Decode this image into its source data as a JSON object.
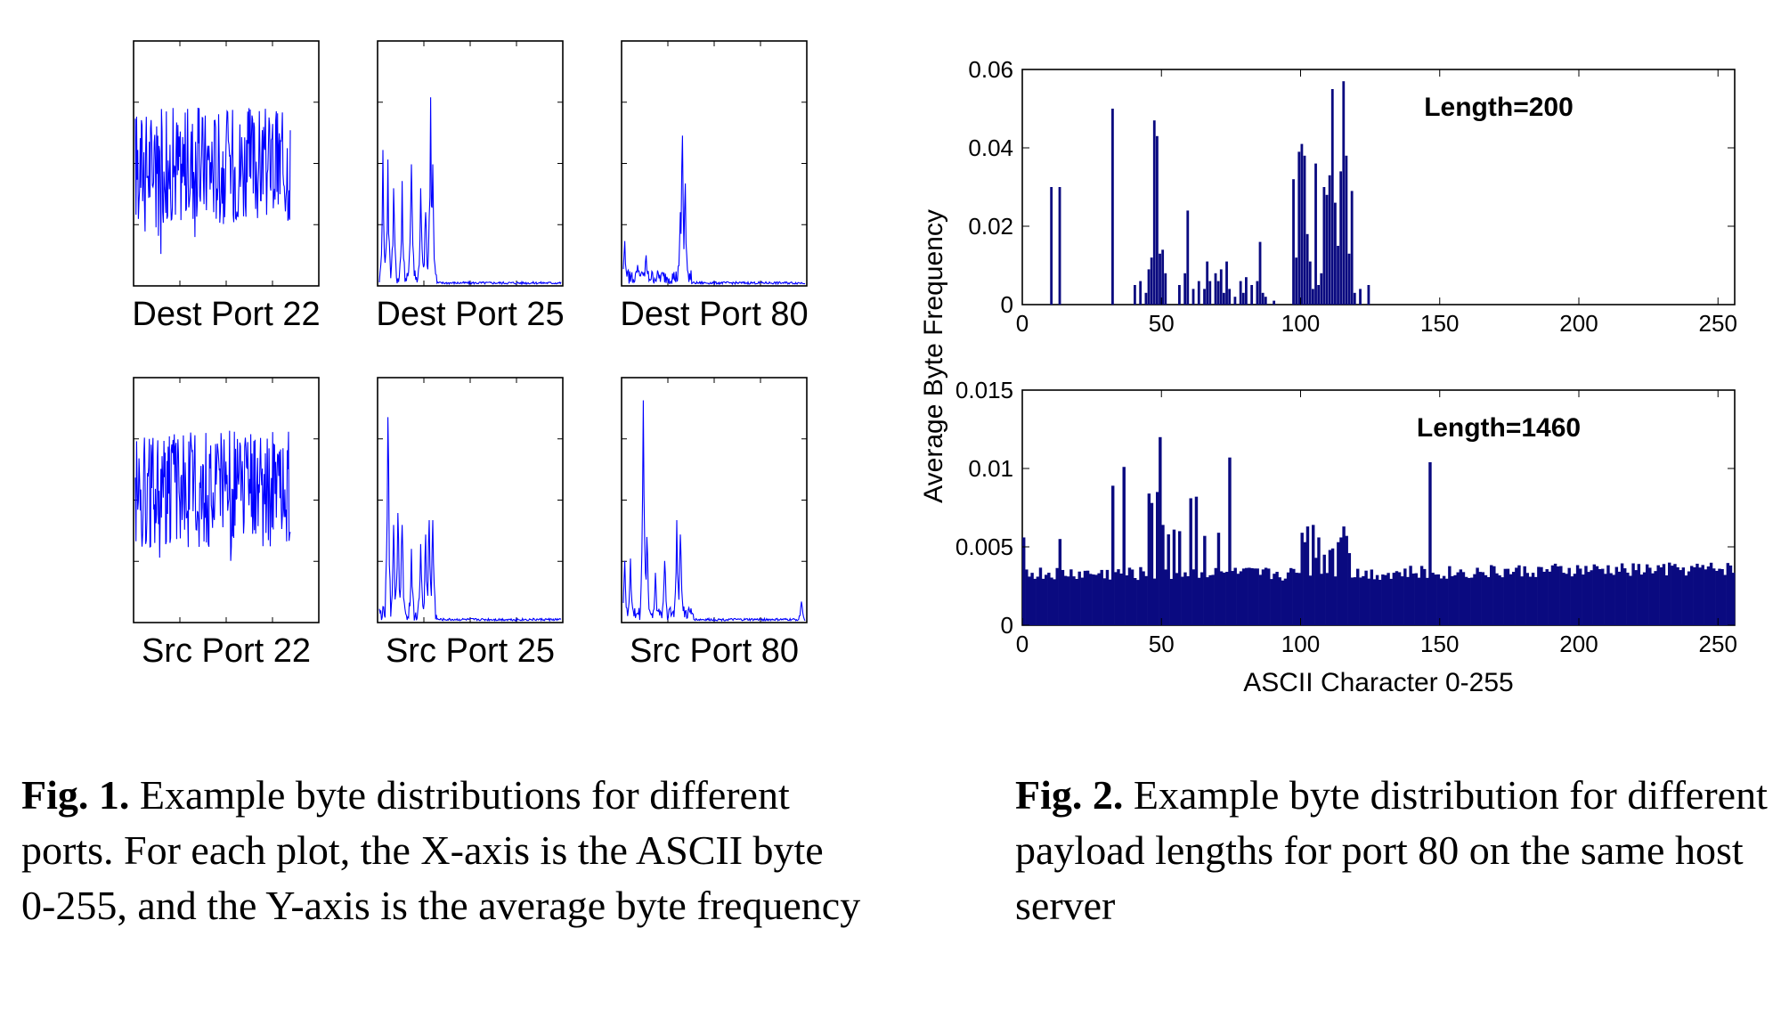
{
  "figure1": {
    "caption_label": "Fig. 1.",
    "caption_text": "Example byte distributions for different ports.  For each plot, the X-axis is the ASCII byte 0-255, and the Y-axis is the average byte frequency",
    "line_color": "#0000ff"
  },
  "figure2": {
    "caption_label": "Fig. 2.",
    "caption_text": "Example byte distribution for different payload lengths for port 80 on the same host server",
    "bar_color": "#0a0a80",
    "ylabel": "Average Byte Frequency",
    "xlabel": "ASCII Character 0-255"
  },
  "chart_data": [
    {
      "type": "line",
      "id": "dest22",
      "title": "Dest Port 22",
      "xlim": [
        0,
        255
      ],
      "profile": "uniform-noisy",
      "level": 0.5,
      "noise": 0.35
    },
    {
      "type": "line",
      "id": "dest25",
      "title": "Dest Port 25",
      "xlim": [
        0,
        255
      ],
      "profile": "spiky-low",
      "peaks": [
        [
          5,
          0.56
        ],
        [
          12,
          0.52
        ],
        [
          20,
          0.4
        ],
        [
          32,
          0.43
        ],
        [
          45,
          0.5
        ],
        [
          58,
          0.4
        ],
        [
          65,
          0.3
        ],
        [
          72,
          0.78
        ],
        [
          75,
          0.5
        ]
      ],
      "active_range": [
        0,
        80
      ]
    },
    {
      "type": "line",
      "id": "dest80",
      "title": "Dest Port 80",
      "xlim": [
        0,
        255
      ],
      "profile": "spiky-low",
      "peaks": [
        [
          2,
          0.18
        ],
        [
          20,
          0.08
        ],
        [
          32,
          0.12
        ],
        [
          83,
          0.62
        ],
        [
          87,
          0.42
        ],
        [
          80,
          0.3
        ]
      ],
      "active_range": [
        0,
        95
      ]
    },
    {
      "type": "line",
      "id": "src22",
      "title": "Src Port 22",
      "xlim": [
        0,
        255
      ],
      "profile": "uniform-noisy",
      "level": 0.55,
      "noise": 0.35
    },
    {
      "type": "line",
      "id": "src25",
      "title": "Src Port 25",
      "xlim": [
        0,
        255
      ],
      "profile": "spiky-low",
      "peaks": [
        [
          12,
          0.85
        ],
        [
          20,
          0.4
        ],
        [
          26,
          0.45
        ],
        [
          32,
          0.4
        ],
        [
          45,
          0.3
        ],
        [
          58,
          0.32
        ],
        [
          65,
          0.36
        ],
        [
          70,
          0.42
        ],
        [
          75,
          0.42
        ]
      ],
      "active_range": [
        0,
        80
      ]
    },
    {
      "type": "line",
      "id": "src80",
      "title": "Src Port 80",
      "xlim": [
        0,
        255
      ],
      "profile": "spiky-low",
      "peaks": [
        [
          2,
          0.25
        ],
        [
          10,
          0.26
        ],
        [
          28,
          0.92
        ],
        [
          33,
          0.35
        ],
        [
          45,
          0.2
        ],
        [
          58,
          0.25
        ],
        [
          75,
          0.42
        ],
        [
          80,
          0.36
        ],
        [
          250,
          0.08
        ]
      ],
      "active_range": [
        0,
        100
      ]
    },
    {
      "type": "bar",
      "id": "len200",
      "annotation": "Length=200",
      "xlim": [
        0,
        256
      ],
      "ylim": [
        0,
        0.06
      ],
      "yticks": [
        "0",
        "0.02",
        "0.04",
        "0.06"
      ],
      "ytick_values": [
        0,
        0.02,
        0.04,
        0.06
      ],
      "xticks": [
        "0",
        "50",
        "100",
        "150",
        "200",
        "250"
      ],
      "xtick_values": [
        0,
        50,
        100,
        150,
        200,
        250
      ],
      "bars": [
        [
          10,
          0.03
        ],
        [
          13,
          0.03
        ],
        [
          32,
          0.05
        ],
        [
          40,
          0.005
        ],
        [
          42,
          0.006
        ],
        [
          44,
          0.003
        ],
        [
          45,
          0.009
        ],
        [
          46,
          0.012
        ],
        [
          47,
          0.047
        ],
        [
          48,
          0.043
        ],
        [
          49,
          0.013
        ],
        [
          50,
          0.014
        ],
        [
          51,
          0.008
        ],
        [
          56,
          0.005
        ],
        [
          58,
          0.008
        ],
        [
          59,
          0.024
        ],
        [
          61,
          0.004
        ],
        [
          63,
          0.006
        ],
        [
          65,
          0.004
        ],
        [
          66,
          0.011
        ],
        [
          67,
          0.006
        ],
        [
          69,
          0.008
        ],
        [
          70,
          0.006
        ],
        [
          71,
          0.009
        ],
        [
          72,
          0.003
        ],
        [
          73,
          0.011
        ],
        [
          74,
          0.004
        ],
        [
          76,
          0.002
        ],
        [
          78,
          0.006
        ],
        [
          79,
          0.003
        ],
        [
          80,
          0.007
        ],
        [
          82,
          0.005
        ],
        [
          84,
          0.006
        ],
        [
          85,
          0.016
        ],
        [
          86,
          0.003
        ],
        [
          87,
          0.002
        ],
        [
          90,
          0.001
        ],
        [
          97,
          0.032
        ],
        [
          98,
          0.012
        ],
        [
          99,
          0.039
        ],
        [
          100,
          0.041
        ],
        [
          101,
          0.038
        ],
        [
          102,
          0.018
        ],
        [
          103,
          0.011
        ],
        [
          104,
          0.004
        ],
        [
          105,
          0.036
        ],
        [
          106,
          0.005
        ],
        [
          107,
          0.008
        ],
        [
          108,
          0.03
        ],
        [
          109,
          0.028
        ],
        [
          110,
          0.033
        ],
        [
          111,
          0.055
        ],
        [
          112,
          0.026
        ],
        [
          113,
          0.015
        ],
        [
          114,
          0.034
        ],
        [
          115,
          0.057
        ],
        [
          116,
          0.038
        ],
        [
          117,
          0.013
        ],
        [
          118,
          0.029
        ],
        [
          119,
          0.003
        ],
        [
          121,
          0.004
        ],
        [
          124,
          0.005
        ]
      ]
    },
    {
      "type": "bar",
      "id": "len1460",
      "annotation": "Length=1460",
      "xlim": [
        0,
        256
      ],
      "ylim": [
        0,
        0.015
      ],
      "yticks": [
        "0",
        "0.005",
        "0.01",
        "0.015"
      ],
      "ytick_values": [
        0,
        0.005,
        0.01,
        0.015
      ],
      "xticks": [
        "0",
        "50",
        "100",
        "150",
        "200",
        "250"
      ],
      "xtick_values": [
        0,
        50,
        100,
        150,
        200,
        250
      ],
      "baseline": 0.0033,
      "spikes": [
        [
          0,
          0.0056
        ],
        [
          13,
          0.0055
        ],
        [
          32,
          0.0089
        ],
        [
          36,
          0.0101
        ],
        [
          45,
          0.0084
        ],
        [
          46,
          0.0078
        ],
        [
          48,
          0.0085
        ],
        [
          49,
          0.012
        ],
        [
          50,
          0.0064
        ],
        [
          52,
          0.0058
        ],
        [
          54,
          0.0061
        ],
        [
          56,
          0.006
        ],
        [
          60,
          0.0081
        ],
        [
          62,
          0.0082
        ],
        [
          65,
          0.0057
        ],
        [
          70,
          0.0059
        ],
        [
          74,
          0.0107
        ],
        [
          100,
          0.0059
        ],
        [
          101,
          0.0053
        ],
        [
          102,
          0.0063
        ],
        [
          104,
          0.0064
        ],
        [
          105,
          0.0043
        ],
        [
          106,
          0.0056
        ],
        [
          108,
          0.0045
        ],
        [
          110,
          0.0048
        ],
        [
          111,
          0.0049
        ],
        [
          113,
          0.0053
        ],
        [
          114,
          0.0056
        ],
        [
          115,
          0.0063
        ],
        [
          116,
          0.0057
        ],
        [
          117,
          0.0046
        ],
        [
          146,
          0.0104
        ]
      ]
    }
  ]
}
